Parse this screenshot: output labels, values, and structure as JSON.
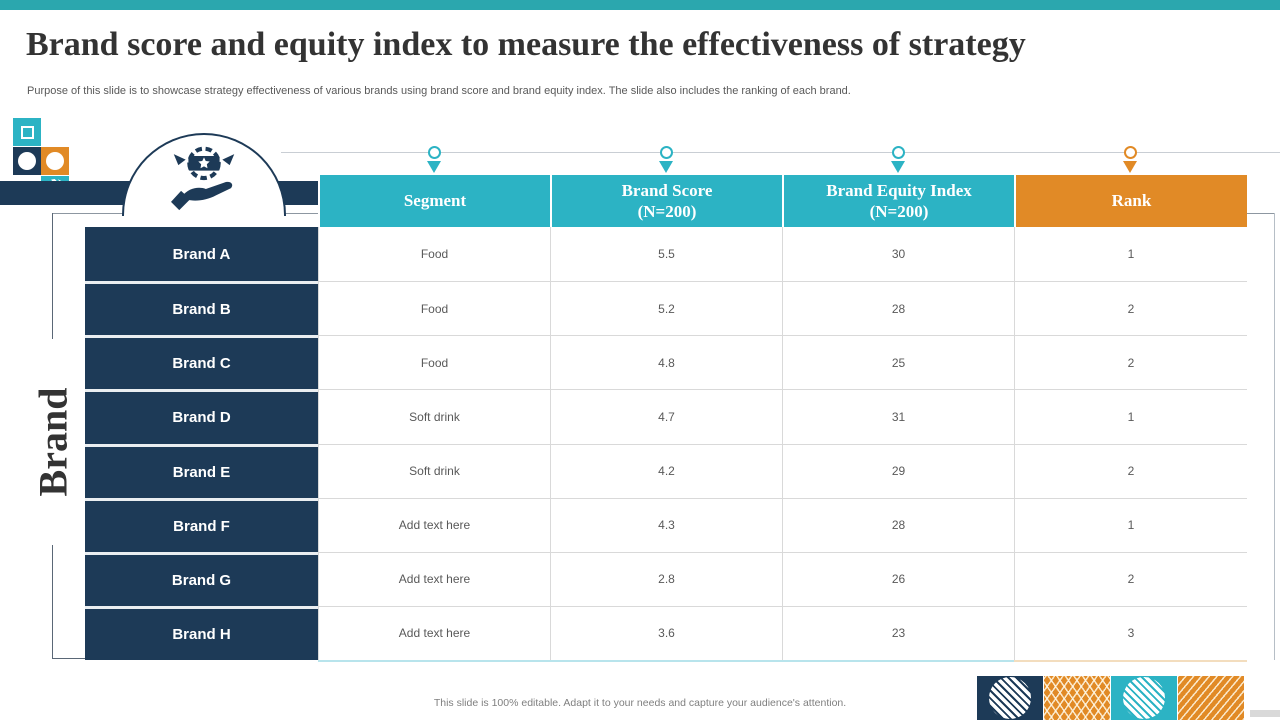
{
  "slide": {
    "title": "Brand score and equity index to measure the effectiveness of strategy",
    "subtitle": "Purpose of this slide is to showcase strategy effectiveness of various brands using brand score and brand equity index. The slide also includes the ranking of each brand.",
    "side_label": "Brand",
    "footer": "This slide is 100% editable. Adapt it to your needs and capture your audience's attention."
  },
  "table": {
    "columns": [
      "Segment",
      "Brand Score\n(N=200)",
      "Brand Equity Index\n(N=200)",
      "Rank"
    ],
    "rows": [
      {
        "brand": "Brand A",
        "segment": "Food",
        "score": "5.5",
        "equity": "30",
        "rank": "1"
      },
      {
        "brand": "Brand B",
        "segment": "Food",
        "score": "5.2",
        "equity": "28",
        "rank": "2"
      },
      {
        "brand": "Brand C",
        "segment": "Food",
        "score": "4.8",
        "equity": "25",
        "rank": "2"
      },
      {
        "brand": "Brand D",
        "segment": "Soft drink",
        "score": "4.7",
        "equity": "31",
        "rank": "1"
      },
      {
        "brand": "Brand E",
        "segment": "Soft drink",
        "score": "4.2",
        "equity": "29",
        "rank": "2"
      },
      {
        "brand": "Brand F",
        "segment": "Add text here",
        "score": "4.3",
        "equity": "28",
        "rank": "1"
      },
      {
        "brand": "Brand G",
        "segment": "Add text here",
        "score": "2.8",
        "equity": "26",
        "rank": "2"
      },
      {
        "brand": "Brand H",
        "segment": "Add text here",
        "score": "3.6",
        "equity": "23",
        "rank": "3"
      }
    ]
  },
  "icons": {
    "semicircle_icon": "award-badge-in-hand",
    "column_markers": "pin-circle-with-down-triangle"
  },
  "colors": {
    "teal": "#2CB3C4",
    "topbar_teal": "#2BA7AE",
    "orange": "#E18A26",
    "navy": "#1D3A57",
    "grid_grey": "#D9D9D9",
    "text_grey": "#595959"
  }
}
